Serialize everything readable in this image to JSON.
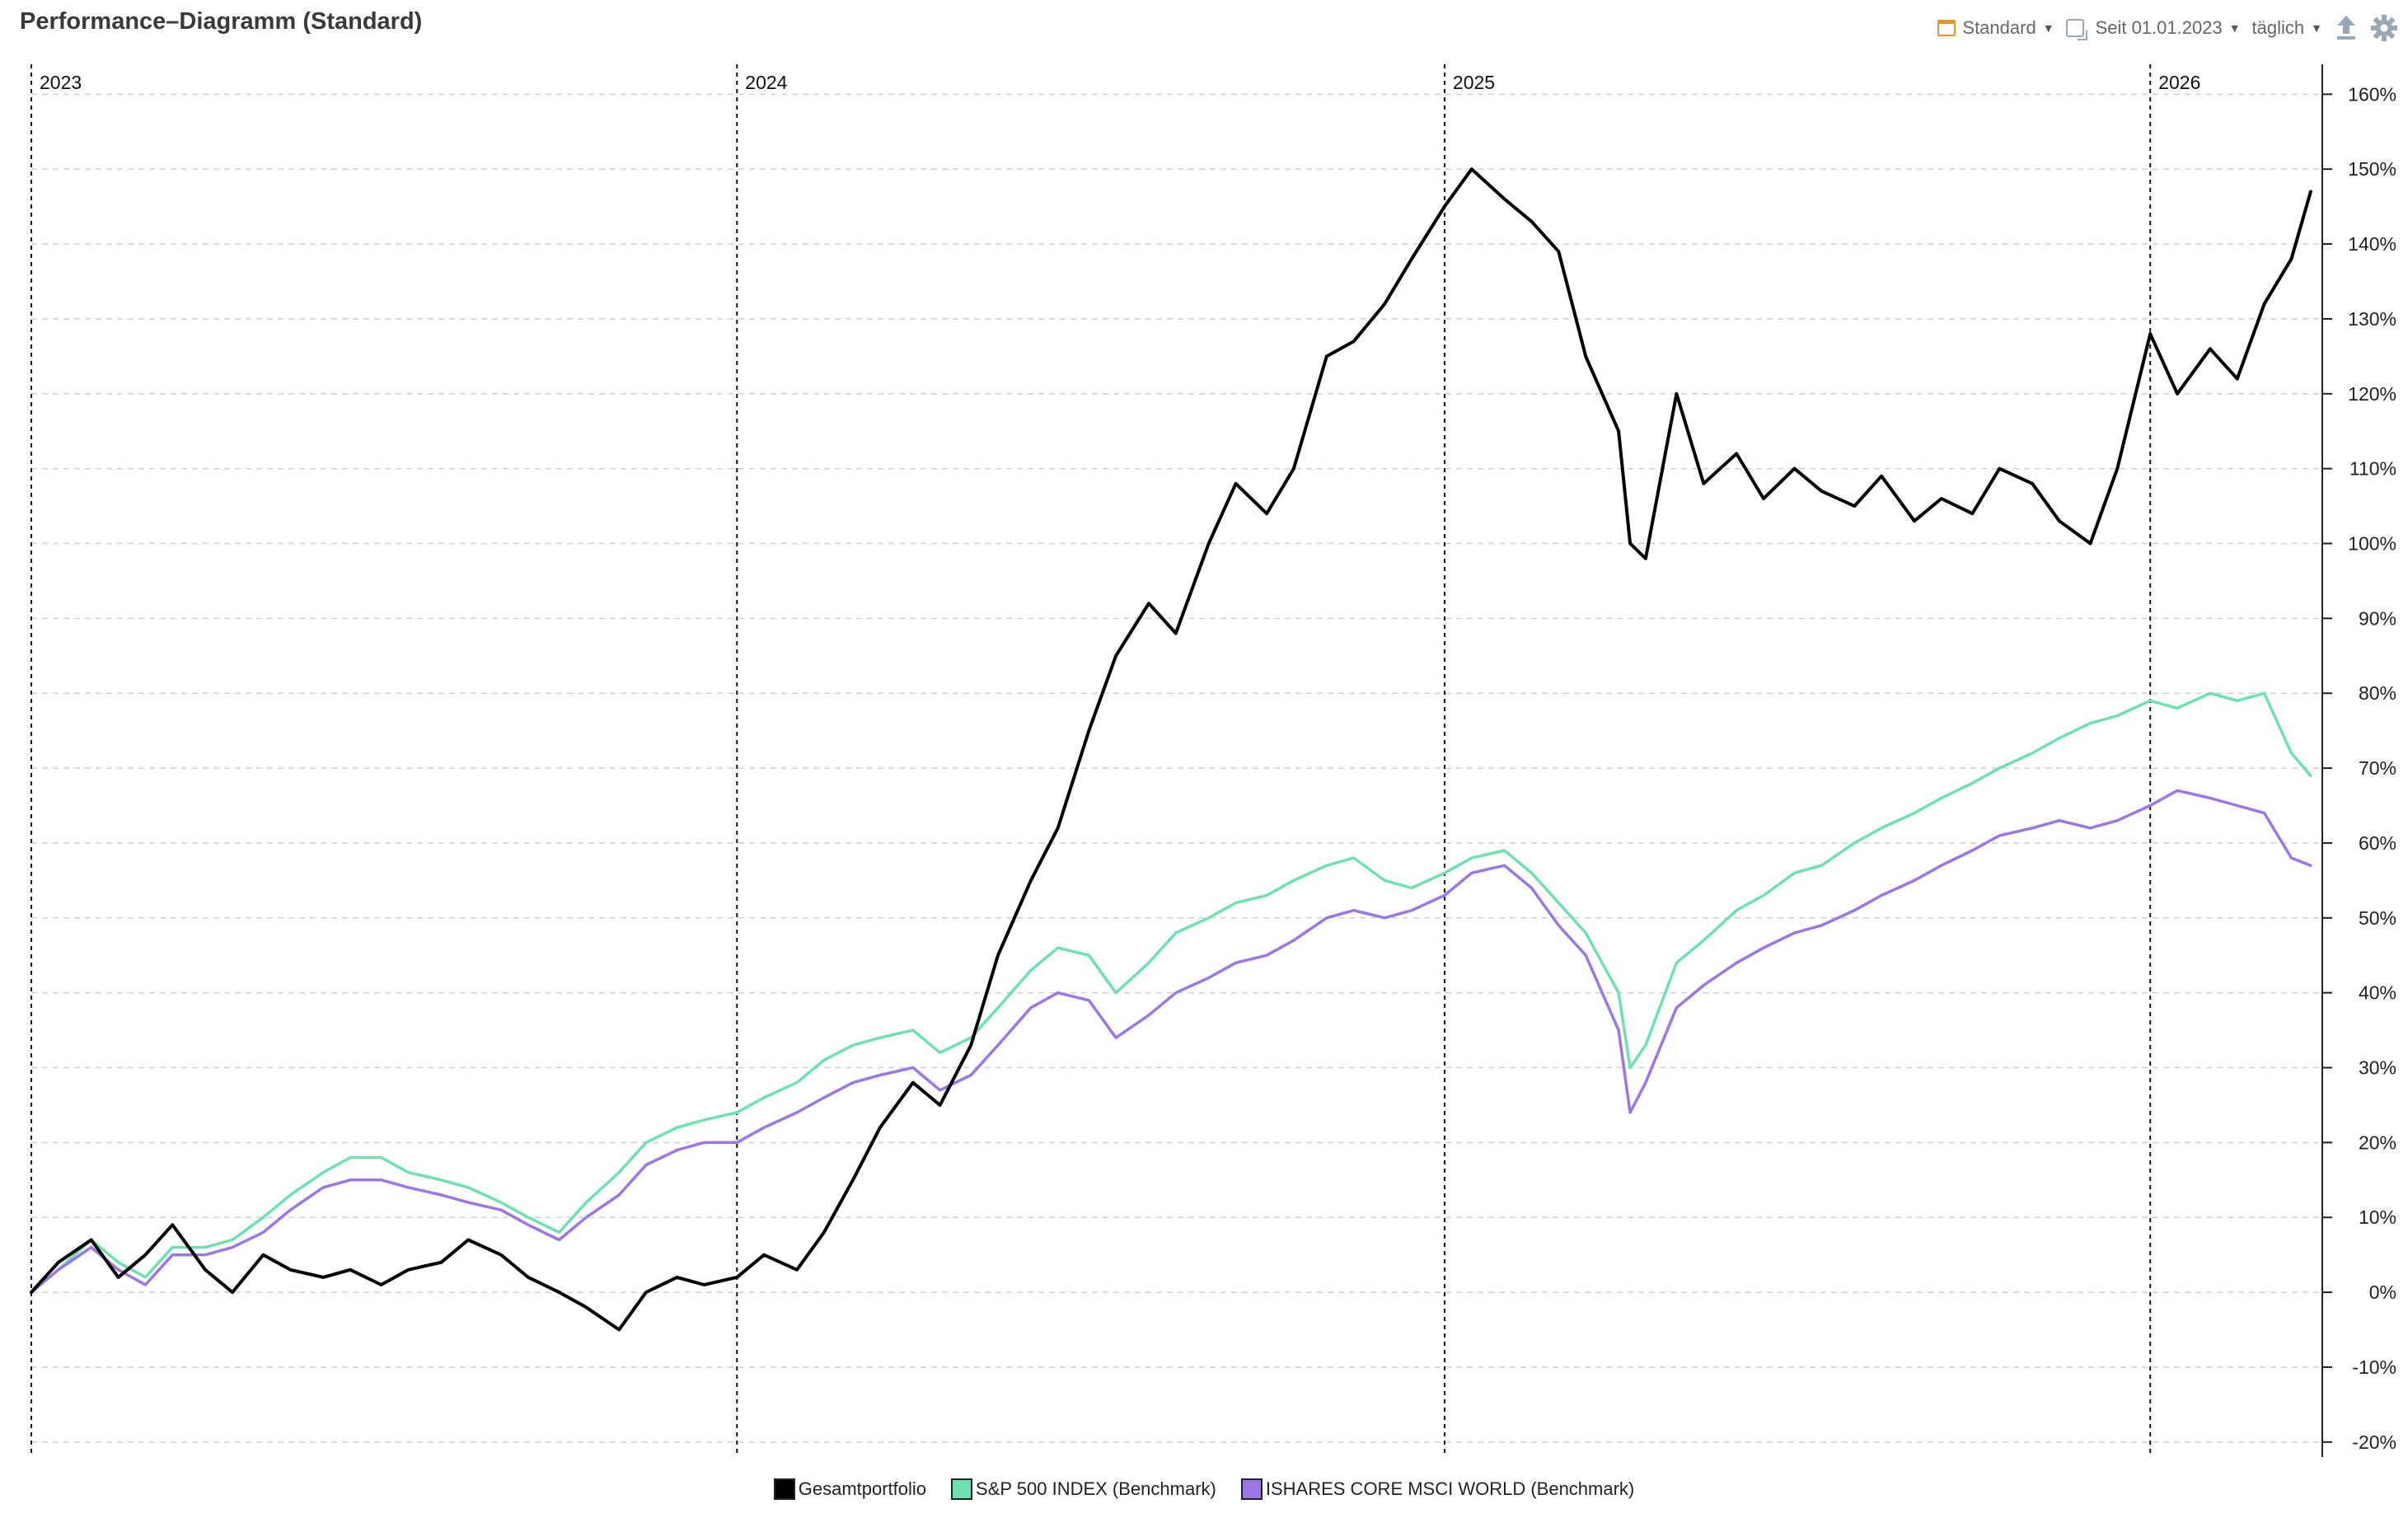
{
  "header": {
    "title": "Performance–Diagramm (Standard)",
    "view_label": "Standard",
    "period_label": "Seit 01.01.2023",
    "interval_label": "täglich"
  },
  "icons": [
    "calendar-icon",
    "compare-icon",
    "export-icon",
    "gear-icon"
  ],
  "colors": {
    "portfolio": "#000000",
    "sp500": "#6fe0b0",
    "msci": "#9b77e6",
    "accent": "#e8942a"
  },
  "chart_data": {
    "type": "line",
    "title": "Performance–Diagramm (Standard)",
    "xlabel": "",
    "ylabel": "",
    "xlim": [
      "2023-01-01",
      "2026-03-31"
    ],
    "ylim": [
      -22,
      164
    ],
    "year_labels": [
      "2023",
      "2024",
      "2025",
      "2026"
    ],
    "year_starts": [
      "2023-01-01",
      "2024-01-01",
      "2025-01-01",
      "2026-01-01"
    ],
    "y_ticks": [
      -20,
      -10,
      0,
      10,
      20,
      30,
      40,
      50,
      60,
      70,
      80,
      90,
      100,
      110,
      120,
      130,
      140,
      150,
      160
    ],
    "y_tick_labels": [
      "-20%",
      "-10%",
      "0%",
      "10%",
      "20%",
      "30%",
      "40%",
      "50%",
      "60%",
      "70%",
      "80%",
      "90%",
      "100%",
      "110%",
      "120%",
      "130%",
      "140%",
      "150%",
      "160%"
    ],
    "grid": true,
    "legend_position": "bottom",
    "series": [
      {
        "name": "Gesamtportfolio",
        "color": "#000000",
        "x": [
          "2023-01-01",
          "2023-01-15",
          "2023-02-01",
          "2023-02-15",
          "2023-03-01",
          "2023-03-15",
          "2023-04-01",
          "2023-04-15",
          "2023-05-01",
          "2023-05-15",
          "2023-06-01",
          "2023-06-15",
          "2023-07-01",
          "2023-07-15",
          "2023-08-01",
          "2023-08-15",
          "2023-09-01",
          "2023-09-15",
          "2023-10-01",
          "2023-10-15",
          "2023-11-01",
          "2023-11-15",
          "2023-12-01",
          "2023-12-15",
          "2024-01-01",
          "2024-01-15",
          "2024-02-01",
          "2024-02-15",
          "2024-03-01",
          "2024-03-15",
          "2024-04-01",
          "2024-04-15",
          "2024-05-01",
          "2024-05-15",
          "2024-06-01",
          "2024-06-15",
          "2024-07-01",
          "2024-07-15",
          "2024-08-01",
          "2024-08-15",
          "2024-09-01",
          "2024-09-15",
          "2024-10-01",
          "2024-10-15",
          "2024-11-01",
          "2024-11-15",
          "2024-12-01",
          "2024-12-15",
          "2025-01-01",
          "2025-01-15",
          "2025-02-01",
          "2025-02-15",
          "2025-03-01",
          "2025-03-15",
          "2025-04-01",
          "2025-04-07",
          "2025-04-15",
          "2025-05-01",
          "2025-05-15",
          "2025-06-01",
          "2025-06-15",
          "2025-07-01",
          "2025-07-15",
          "2025-08-01",
          "2025-08-15",
          "2025-09-01",
          "2025-09-15",
          "2025-10-01",
          "2025-10-15",
          "2025-11-01",
          "2025-11-15",
          "2025-12-01",
          "2025-12-15",
          "2026-01-01",
          "2026-01-15",
          "2026-02-01",
          "2026-02-15",
          "2026-03-01",
          "2026-03-15",
          "2026-03-25"
        ],
        "y": [
          0,
          4,
          7,
          2,
          5,
          9,
          3,
          0,
          5,
          3,
          2,
          3,
          1,
          3,
          4,
          7,
          5,
          2,
          0,
          -2,
          -5,
          0,
          2,
          1,
          2,
          5,
          3,
          8,
          15,
          22,
          28,
          25,
          33,
          45,
          55,
          62,
          75,
          85,
          92,
          88,
          100,
          108,
          104,
          110,
          125,
          127,
          132,
          138,
          145,
          150,
          146,
          143,
          139,
          125,
          115,
          100,
          98,
          120,
          108,
          112,
          106,
          110,
          107,
          105,
          109,
          103,
          106,
          104,
          110,
          108,
          103,
          100,
          110,
          128,
          120,
          126,
          122,
          132,
          138,
          147
        ],
        "values": [
          0,
          4,
          7,
          2,
          5,
          9,
          3,
          0,
          5,
          3,
          2,
          3,
          1,
          3,
          4,
          7,
          5,
          2,
          0,
          -2,
          -5,
          0,
          2,
          1,
          2,
          5,
          3,
          8,
          15,
          22,
          28,
          25,
          33,
          45,
          55,
          62,
          75,
          85,
          92,
          88,
          100,
          108,
          104,
          110,
          125,
          127,
          132,
          138,
          145,
          150,
          146,
          143,
          139,
          125,
          115,
          100,
          98,
          120,
          108,
          112,
          106,
          110,
          107,
          105,
          109,
          103,
          106,
          104,
          110,
          108,
          103,
          100,
          110,
          128,
          120,
          126,
          122,
          132,
          138,
          147
        ]
      },
      {
        "name": "S&P 500 INDEX (Benchmark)",
        "color": "#6fe0b0",
        "x": [
          "2023-01-01",
          "2023-01-15",
          "2023-02-01",
          "2023-02-15",
          "2023-03-01",
          "2023-03-15",
          "2023-04-01",
          "2023-04-15",
          "2023-05-01",
          "2023-05-15",
          "2023-06-01",
          "2023-06-15",
          "2023-07-01",
          "2023-07-15",
          "2023-08-01",
          "2023-08-15",
          "2023-09-01",
          "2023-09-15",
          "2023-10-01",
          "2023-10-15",
          "2023-11-01",
          "2023-11-15",
          "2023-12-01",
          "2023-12-15",
          "2024-01-01",
          "2024-01-15",
          "2024-02-01",
          "2024-02-15",
          "2024-03-01",
          "2024-03-15",
          "2024-04-01",
          "2024-04-15",
          "2024-05-01",
          "2024-05-15",
          "2024-06-01",
          "2024-06-15",
          "2024-07-01",
          "2024-07-15",
          "2024-08-01",
          "2024-08-15",
          "2024-09-01",
          "2024-09-15",
          "2024-10-01",
          "2024-10-15",
          "2024-11-01",
          "2024-11-15",
          "2024-12-01",
          "2024-12-15",
          "2025-01-01",
          "2025-01-15",
          "2025-02-01",
          "2025-02-15",
          "2025-03-01",
          "2025-03-15",
          "2025-04-01",
          "2025-04-07",
          "2025-04-15",
          "2025-05-01",
          "2025-05-15",
          "2025-06-01",
          "2025-06-15",
          "2025-07-01",
          "2025-07-15",
          "2025-08-01",
          "2025-08-15",
          "2025-09-01",
          "2025-09-15",
          "2025-10-01",
          "2025-10-15",
          "2025-11-01",
          "2025-11-15",
          "2025-12-01",
          "2025-12-15",
          "2026-01-01",
          "2026-01-15",
          "2026-02-01",
          "2026-02-15",
          "2026-03-01",
          "2026-03-15",
          "2026-03-25"
        ],
        "y": [
          0,
          3,
          7,
          4,
          2,
          6,
          6,
          7,
          10,
          13,
          16,
          18,
          18,
          16,
          15,
          14,
          12,
          10,
          8,
          12,
          16,
          20,
          22,
          23,
          24,
          26,
          28,
          31,
          33,
          34,
          35,
          32,
          34,
          38,
          43,
          46,
          45,
          40,
          44,
          48,
          50,
          52,
          53,
          55,
          57,
          58,
          55,
          54,
          56,
          58,
          59,
          56,
          52,
          48,
          40,
          30,
          33,
          44,
          47,
          51,
          53,
          56,
          57,
          60,
          62,
          64,
          66,
          68,
          70,
          72,
          74,
          76,
          77,
          79,
          78,
          80,
          79,
          80,
          72,
          69
        ],
        "values": [
          0,
          3,
          7,
          4,
          2,
          6,
          6,
          7,
          10,
          13,
          16,
          18,
          18,
          16,
          15,
          14,
          12,
          10,
          8,
          12,
          16,
          20,
          22,
          23,
          24,
          26,
          28,
          31,
          33,
          34,
          35,
          32,
          34,
          38,
          43,
          46,
          45,
          40,
          44,
          48,
          50,
          52,
          53,
          55,
          57,
          58,
          55,
          54,
          56,
          58,
          59,
          56,
          52,
          48,
          40,
          30,
          33,
          44,
          47,
          51,
          53,
          56,
          57,
          60,
          62,
          64,
          66,
          68,
          70,
          72,
          74,
          76,
          77,
          79,
          78,
          80,
          79,
          80,
          72,
          69
        ]
      },
      {
        "name": "ISHARES CORE MSCI WORLD (Benchmark)",
        "color": "#9b77e6",
        "x": [
          "2023-01-01",
          "2023-01-15",
          "2023-02-01",
          "2023-02-15",
          "2023-03-01",
          "2023-03-15",
          "2023-04-01",
          "2023-04-15",
          "2023-05-01",
          "2023-05-15",
          "2023-06-01",
          "2023-06-15",
          "2023-07-01",
          "2023-07-15",
          "2023-08-01",
          "2023-08-15",
          "2023-09-01",
          "2023-09-15",
          "2023-10-01",
          "2023-10-15",
          "2023-11-01",
          "2023-11-15",
          "2023-12-01",
          "2023-12-15",
          "2024-01-01",
          "2024-01-15",
          "2024-02-01",
          "2024-02-15",
          "2024-03-01",
          "2024-03-15",
          "2024-04-01",
          "2024-04-15",
          "2024-05-01",
          "2024-05-15",
          "2024-06-01",
          "2024-06-15",
          "2024-07-01",
          "2024-07-15",
          "2024-08-01",
          "2024-08-15",
          "2024-09-01",
          "2024-09-15",
          "2024-10-01",
          "2024-10-15",
          "2024-11-01",
          "2024-11-15",
          "2024-12-01",
          "2024-12-15",
          "2025-01-01",
          "2025-01-15",
          "2025-02-01",
          "2025-02-15",
          "2025-03-01",
          "2025-03-15",
          "2025-04-01",
          "2025-04-07",
          "2025-04-15",
          "2025-05-01",
          "2025-05-15",
          "2025-06-01",
          "2025-06-15",
          "2025-07-01",
          "2025-07-15",
          "2025-08-01",
          "2025-08-15",
          "2025-09-01",
          "2025-09-15",
          "2025-10-01",
          "2025-10-15",
          "2025-11-01",
          "2025-11-15",
          "2025-12-01",
          "2025-12-15",
          "2026-01-01",
          "2026-01-15",
          "2026-02-01",
          "2026-02-15",
          "2026-03-01",
          "2026-03-15",
          "2026-03-25"
        ],
        "y": [
          0,
          3,
          6,
          3,
          1,
          5,
          5,
          6,
          8,
          11,
          14,
          15,
          15,
          14,
          13,
          12,
          11,
          9,
          7,
          10,
          13,
          17,
          19,
          20,
          20,
          22,
          24,
          26,
          28,
          29,
          30,
          27,
          29,
          33,
          38,
          40,
          39,
          34,
          37,
          40,
          42,
          44,
          45,
          47,
          50,
          51,
          50,
          51,
          53,
          56,
          57,
          54,
          49,
          45,
          35,
          24,
          28,
          38,
          41,
          44,
          46,
          48,
          49,
          51,
          53,
          55,
          57,
          59,
          61,
          62,
          63,
          62,
          63,
          65,
          67,
          66,
          65,
          64,
          58,
          57
        ],
        "values": [
          0,
          3,
          6,
          3,
          1,
          5,
          5,
          6,
          8,
          11,
          14,
          15,
          15,
          14,
          13,
          12,
          11,
          9,
          7,
          10,
          13,
          17,
          19,
          20,
          20,
          22,
          24,
          26,
          28,
          29,
          30,
          27,
          29,
          33,
          38,
          40,
          39,
          34,
          37,
          40,
          42,
          44,
          45,
          47,
          50,
          51,
          50,
          51,
          53,
          56,
          57,
          54,
          49,
          45,
          35,
          24,
          28,
          38,
          41,
          44,
          46,
          48,
          49,
          51,
          53,
          55,
          57,
          59,
          61,
          62,
          63,
          62,
          63,
          65,
          67,
          66,
          65,
          64,
          58,
          57
        ]
      }
    ]
  }
}
